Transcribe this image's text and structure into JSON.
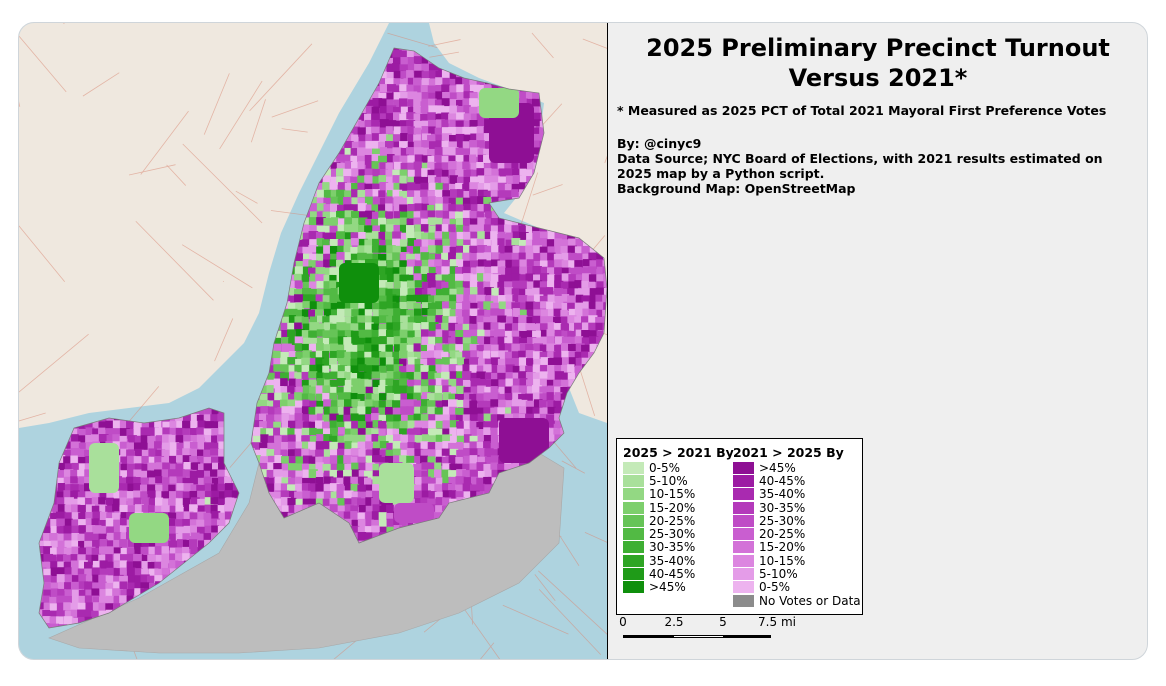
{
  "title_line1": "2025 Preliminary Precinct Turnout",
  "title_line2": "Versus 2021*",
  "footnote": "* Measured as 2025 PCT of Total 2021 Mayoral First Preference Votes",
  "credits": {
    "by": "By: @cinyc9",
    "source": "Data Source; NYC Board of Elections, with 2021 results estimated on 2025 map by a Python script.",
    "background": "Background Map: OpenStreetMap"
  },
  "legend": {
    "green_header": "2025 > 2021 By",
    "purple_header": "2021 > 2025 By",
    "green_items": [
      {
        "label": "0-5%",
        "color": "#c4eab8"
      },
      {
        "label": "5-10%",
        "color": "#a9e09b"
      },
      {
        "label": "10-15%",
        "color": "#93d883"
      },
      {
        "label": "15-20%",
        "color": "#7dcf6c"
      },
      {
        "label": "20-25%",
        "color": "#66c457"
      },
      {
        "label": "25-30%",
        "color": "#52ba44"
      },
      {
        "label": "30-35%",
        "color": "#3eaf33"
      },
      {
        "label": "35-40%",
        "color": "#2ea524"
      },
      {
        "label": "40-45%",
        "color": "#1f9b18"
      },
      {
        "label": ">45%",
        "color": "#0f8f0c"
      }
    ],
    "purple_items": [
      {
        "label": ">45%",
        "color": "#8e0f94"
      },
      {
        "label": "40-45%",
        "color": "#9c1ba3"
      },
      {
        "label": "35-40%",
        "color": "#a92ab0"
      },
      {
        "label": "30-35%",
        "color": "#b43abb"
      },
      {
        "label": "25-30%",
        "color": "#bf4cc6"
      },
      {
        "label": "20-25%",
        "color": "#c95ed0"
      },
      {
        "label": "15-20%",
        "color": "#d372d8"
      },
      {
        "label": "10-15%",
        "color": "#dc86e0"
      },
      {
        "label": "5-10%",
        "color": "#e49ce8"
      },
      {
        "label": "0-5%",
        "color": "#edb3ef"
      },
      {
        "label": "No Votes or Data",
        "color": "#8c8c8c"
      }
    ]
  },
  "scale": {
    "labels": [
      "0",
      "2.5",
      "5",
      "7.5 mi"
    ]
  },
  "colors": {
    "water": "#aed3df",
    "land": "#f2efe9",
    "no_data": "#c0c0c0"
  }
}
